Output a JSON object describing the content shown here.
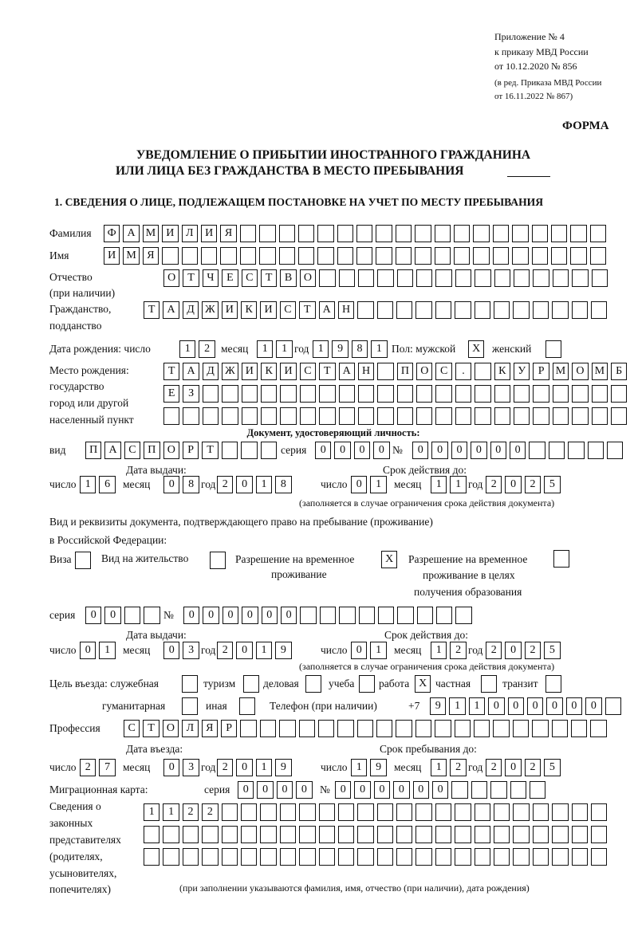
{
  "header": {
    "appendix": [
      "Приложение № 4",
      "к приказу МВД России",
      "от 10.12.2020 № 856"
    ],
    "edition": [
      "(в ред. Приказа МВД России",
      "от 16.11.2022 № 867)"
    ],
    "form_label": "ФОРМА",
    "title_line1": "УВЕДОМЛЕНИЕ О ПРИБЫТИИ ИНОСТРАННОГО ГРАЖДАНИНА",
    "title_line2": "ИЛИ ЛИЦА БЕЗ ГРАЖДАНСТВА В МЕСТО ПРЕБЫВАНИЯ",
    "section1": "1. СВЕДЕНИЯ О ЛИЦЕ, ПОДЛЕЖАЩЕМ ПОСТАНОВКЕ НА УЧЕТ ПО МЕСТУ ПРЕБЫВАНИЯ"
  },
  "person": {
    "surname": {
      "label": "Фамилия",
      "cells": [
        "Ф",
        "А",
        "М",
        "И",
        "Л",
        "И",
        "Я",
        "",
        "",
        "",
        "",
        "",
        "",
        "",
        "",
        "",
        "",
        "",
        "",
        "",
        "",
        "",
        "",
        "",
        "",
        ""
      ]
    },
    "name": {
      "label": "Имя",
      "cells": [
        "И",
        "М",
        "Я",
        "",
        "",
        "",
        "",
        "",
        "",
        "",
        "",
        "",
        "",
        "",
        "",
        "",
        "",
        "",
        "",
        "",
        "",
        "",
        "",
        "",
        "",
        ""
      ]
    },
    "patronymic": {
      "label": "Отчество",
      "label2": "(при наличии)",
      "cells": [
        "О",
        "Т",
        "Ч",
        "Е",
        "С",
        "Т",
        "В",
        "О",
        "",
        "",
        "",
        "",
        "",
        "",
        "",
        "",
        "",
        "",
        "",
        "",
        "",
        "",
        ""
      ]
    },
    "citizenship": {
      "label": "Гражданство,",
      "label2": "подданство",
      "cells": [
        "Т",
        "А",
        "Д",
        "Ж",
        "И",
        "К",
        "И",
        "С",
        "Т",
        "А",
        "Н",
        "",
        "",
        "",
        "",
        "",
        "",
        "",
        "",
        "",
        "",
        "",
        "",
        ""
      ]
    },
    "birth": {
      "label": "Дата рождения:  число",
      "day": [
        "1",
        "2"
      ],
      "month_label": "месяц",
      "month": [
        "1",
        "1"
      ],
      "year_label": "год",
      "year": [
        "1",
        "9",
        "8",
        "1"
      ],
      "sex_label": "Пол: мужской",
      "male": [
        "X"
      ],
      "female_label": "женский",
      "female": [
        ""
      ]
    },
    "birthplace": {
      "labels": [
        "Место рождения:",
        "государство",
        "город или другой",
        "населенный пункт"
      ],
      "row1": [
        "Т",
        "А",
        "Д",
        "Ж",
        "И",
        "К",
        "И",
        "С",
        "Т",
        "А",
        "Н",
        "",
        "П",
        "О",
        "С",
        ".",
        "",
        "К",
        "У",
        "Р",
        "М",
        "О",
        "М",
        "Б"
      ],
      "row2": [
        "Е",
        "З",
        "",
        "",
        "",
        "",
        "",
        "",
        "",
        "",
        "",
        "",
        "",
        "",
        "",
        "",
        "",
        "",
        "",
        "",
        "",
        "",
        "",
        ""
      ],
      "row3": [
        "",
        "",
        "",
        "",
        "",
        "",
        "",
        "",
        "",
        "",
        "",
        "",
        "",
        "",
        "",
        "",
        "",
        "",
        "",
        "",
        "",
        "",
        "",
        ""
      ]
    }
  },
  "id_document": {
    "heading": "Документ, удостоверяющий личность:",
    "type_label": "вид",
    "type": [
      "П",
      "А",
      "С",
      "П",
      "О",
      "Р",
      "Т",
      "",
      "",
      ""
    ],
    "series_label": "серия",
    "series": [
      "0",
      "0",
      "0",
      "0"
    ],
    "number_label": "№",
    "number": [
      "0",
      "0",
      "0",
      "0",
      "0",
      "0",
      "",
      "",
      "",
      "",
      ""
    ],
    "issue_label": "Дата выдачи:",
    "valid_label": "Срок действия до:",
    "day_label": "число",
    "month_label": "месяц",
    "year_label": "год",
    "issue_day": [
      "1",
      "6"
    ],
    "issue_month": [
      "0",
      "8"
    ],
    "issue_year": [
      "2",
      "0",
      "1",
      "8"
    ],
    "valid_day": [
      "0",
      "1"
    ],
    "valid_month": [
      "1",
      "1"
    ],
    "valid_year": [
      "2",
      "0",
      "2",
      "5"
    ],
    "note": "(заполняется в случае ограничения срока действия документа)"
  },
  "stay_document": {
    "heading1": "Вид и реквизиты документа, подтверждающего право на пребывание (проживание)",
    "heading2": "в Российской Федерации:",
    "visa_label": "Виза",
    "visa": [
      ""
    ],
    "residence_label": "Вид на жительство",
    "residence": [
      ""
    ],
    "trp_label1": "Разрешение на временное",
    "trp_label2": "проживание",
    "trp": [
      "X"
    ],
    "trp_edu_label1": "Разрешение на временное",
    "trp_edu_label2": "проживание в целях",
    "trp_edu_label3": "получения образования",
    "trp_edu": [
      ""
    ],
    "series_label": "серия",
    "series": [
      "0",
      "0",
      "",
      ""
    ],
    "number_label": "№",
    "number": [
      "0",
      "0",
      "0",
      "0",
      "0",
      "0",
      "",
      "",
      "",
      "",
      "",
      "",
      "",
      "",
      ""
    ],
    "issue_label": "Дата выдачи:",
    "valid_label": "Срок действия до:",
    "day_label": "число",
    "month_label": "месяц",
    "year_label": "год",
    "issue_day": [
      "0",
      "1"
    ],
    "issue_month": [
      "0",
      "3"
    ],
    "issue_year": [
      "2",
      "0",
      "1",
      "9"
    ],
    "valid_day": [
      "0",
      "1"
    ],
    "valid_month": [
      "1",
      "2"
    ],
    "valid_year": [
      "2",
      "0",
      "2",
      "5"
    ],
    "note": "(заполняется в случае ограничения срока действия документа)"
  },
  "purpose": {
    "label": "Цель въезда: служебная",
    "official": [
      ""
    ],
    "tourism_label": "туризм",
    "tourism": [
      ""
    ],
    "business_label": "деловая",
    "business": [
      ""
    ],
    "study_label": "учеба",
    "study": [
      ""
    ],
    "work_label": "работа",
    "work": [
      "X"
    ],
    "private_label": "частная",
    "private": [
      ""
    ],
    "transit_label": "транзит",
    "transit": [
      ""
    ],
    "humanitarian_label": "гуманитарная",
    "humanitarian": [
      ""
    ],
    "other_label": "иная",
    "other": [
      ""
    ]
  },
  "phone": {
    "label": "Телефон (при наличии)",
    "prefix": "+7",
    "cells": [
      "9",
      "1",
      "1",
      "0",
      "0",
      "0",
      "0",
      "0",
      "0",
      ""
    ]
  },
  "profession": {
    "label": "Профессия",
    "cells": [
      "С",
      "Т",
      "О",
      "Л",
      "Я",
      "Р",
      "",
      "",
      "",
      "",
      "",
      "",
      "",
      "",
      "",
      "",
      "",
      "",
      "",
      "",
      "",
      "",
      "",
      "",
      ""
    ]
  },
  "entry": {
    "entry_label": "Дата въезда:",
    "stay_label": "Срок пребывания до:",
    "day_label": "число",
    "month_label": "месяц",
    "year_label": "год",
    "entry_day": [
      "2",
      "7"
    ],
    "entry_month": [
      "0",
      "3"
    ],
    "entry_year": [
      "2",
      "0",
      "1",
      "9"
    ],
    "stay_day": [
      "1",
      "9"
    ],
    "stay_month": [
      "1",
      "2"
    ],
    "stay_year": [
      "2",
      "0",
      "2",
      "5"
    ]
  },
  "migration_card": {
    "label": "Миграционная карта:",
    "series_label": "серия",
    "series": [
      "0",
      "0",
      "0",
      "0"
    ],
    "number_label": "№",
    "number": [
      "0",
      "0",
      "0",
      "0",
      "0",
      "0",
      "",
      "",
      "",
      "",
      ""
    ]
  },
  "representatives": {
    "labels": [
      "Сведения о",
      "законных",
      "представителях",
      "(родителях,",
      "усыновителях,",
      "попечителях)"
    ],
    "row1": [
      "1",
      "1",
      "2",
      "2",
      "",
      "",
      "",
      "",
      "",
      "",
      "",
      "",
      "",
      "",
      "",
      "",
      "",
      "",
      "",
      "",
      "",
      "",
      "",
      ""
    ],
    "row2": [
      "",
      "",
      "",
      "",
      "",
      "",
      "",
      "",
      "",
      "",
      "",
      "",
      "",
      "",
      "",
      "",
      "",
      "",
      "",
      "",
      "",
      "",
      "",
      ""
    ],
    "row3": [
      "",
      "",
      "",
      "",
      "",
      "",
      "",
      "",
      "",
      "",
      "",
      "",
      "",
      "",
      "",
      "",
      "",
      "",
      "",
      "",
      "",
      "",
      "",
      ""
    ],
    "note": "(при заполнении указываются фамилия, имя, отчество (при наличии), дата рождения)"
  }
}
